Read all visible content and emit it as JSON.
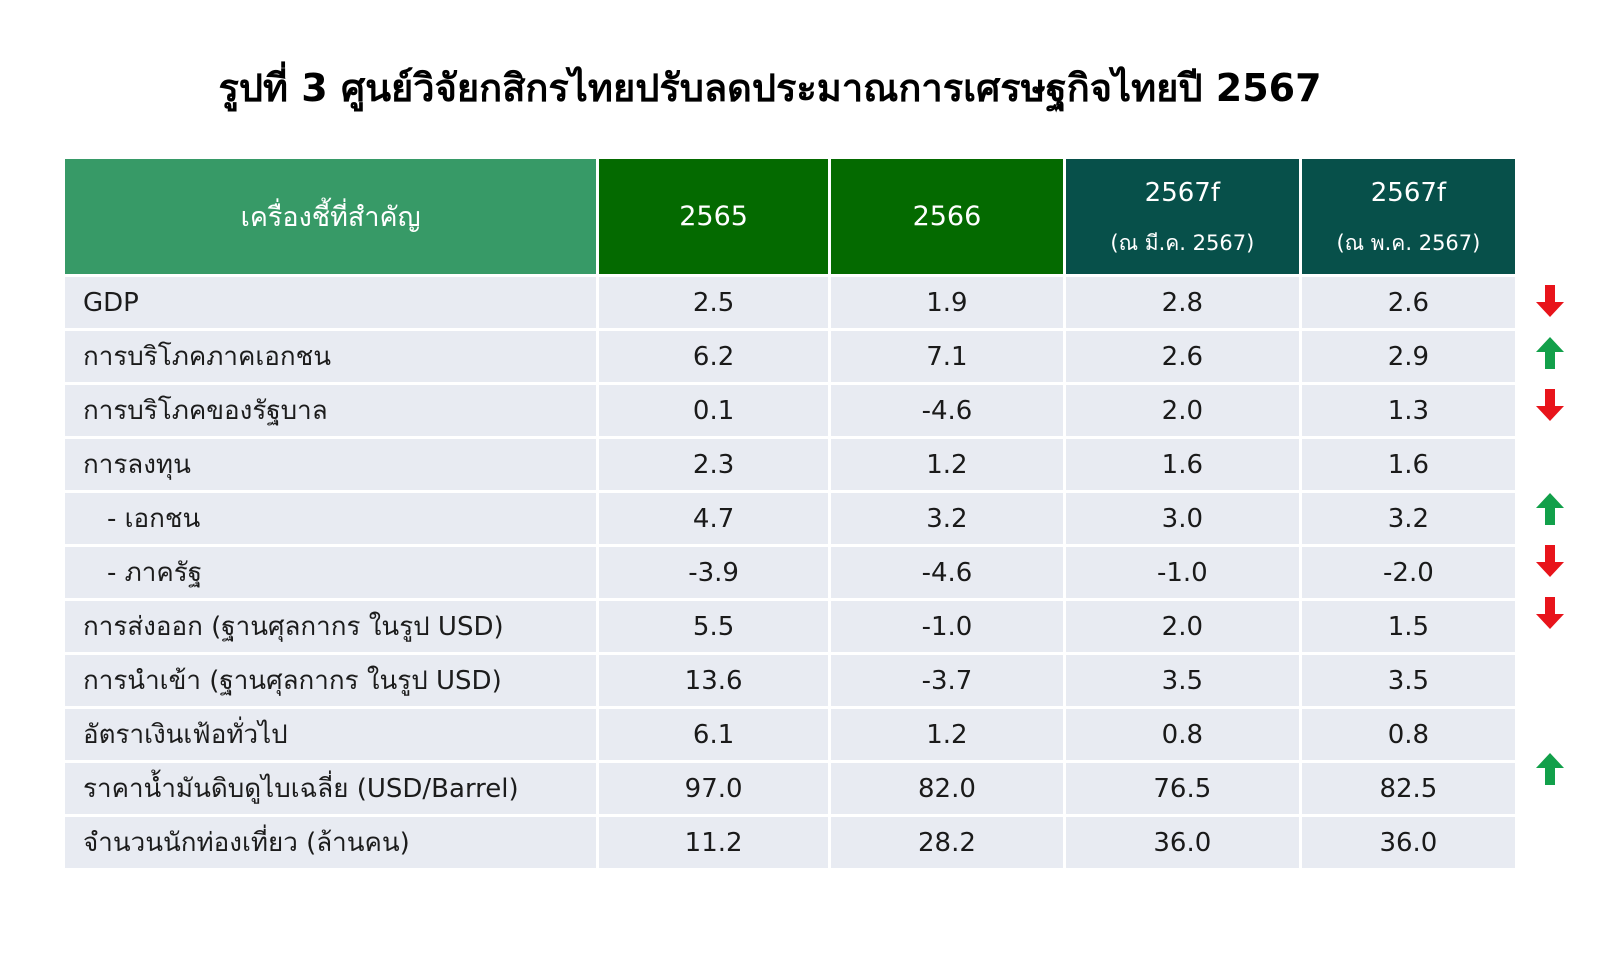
{
  "title": "รูปที่ 3 ศูนย์วิจัยกสิกรไทยปรับลดประมาณการเศรษฐกิจไทยปี 2567",
  "header": {
    "indicator": "เครื่องชี้ที่สำคัญ",
    "col_2565": "2565",
    "col_2566": "2566",
    "col_fc_mar": "2567f",
    "col_fc_mar_sub": "(ณ มี.ค. 2567)",
    "col_fc_may": "2567f",
    "col_fc_may_sub": "(ณ พ.ค. 2567)"
  },
  "rows": [
    {
      "label": "GDP",
      "indent": false,
      "v2565": "2.5",
      "v2566": "1.9",
      "fc_mar": "2.8",
      "fc_may": "2.6",
      "trend": "down"
    },
    {
      "label": "การบริโภคภาคเอกชน",
      "indent": false,
      "v2565": "6.2",
      "v2566": "7.1",
      "fc_mar": "2.6",
      "fc_may": "2.9",
      "trend": "up"
    },
    {
      "label": "การบริโภคของรัฐบาล",
      "indent": false,
      "v2565": "0.1",
      "v2566": "-4.6",
      "fc_mar": "2.0",
      "fc_may": "1.3",
      "trend": "down"
    },
    {
      "label": "การลงทุน",
      "indent": false,
      "v2565": "2.3",
      "v2566": "1.2",
      "fc_mar": "1.6",
      "fc_may": "1.6",
      "trend": "none"
    },
    {
      "label": "- เอกชน",
      "indent": true,
      "v2565": "4.7",
      "v2566": "3.2",
      "fc_mar": "3.0",
      "fc_may": "3.2",
      "trend": "up"
    },
    {
      "label": "- ภาครัฐ",
      "indent": true,
      "v2565": "-3.9",
      "v2566": "-4.6",
      "fc_mar": "-1.0",
      "fc_may": "-2.0",
      "trend": "down"
    },
    {
      "label": "การส่งออก (ฐานศุลกากร ในรูป USD)",
      "indent": false,
      "v2565": "5.5",
      "v2566": "-1.0",
      "fc_mar": "2.0",
      "fc_may": "1.5",
      "trend": "down"
    },
    {
      "label": "การนำเข้า (ฐานศุลกากร ในรูป USD)",
      "indent": false,
      "v2565": "13.6",
      "v2566": "-3.7",
      "fc_mar": "3.5",
      "fc_may": "3.5",
      "trend": "none"
    },
    {
      "label": "อัตราเงินเฟ้อทั่วไป",
      "indent": false,
      "v2565": "6.1",
      "v2566": "1.2",
      "fc_mar": "0.8",
      "fc_may": "0.8",
      "trend": "none"
    },
    {
      "label": "ราคาน้ำมันดิบดูไบเฉลี่ย (USD/Barrel)",
      "indent": false,
      "v2565": "97.0",
      "v2566": "82.0",
      "fc_mar": "76.5",
      "fc_may": "82.5",
      "trend": "up"
    },
    {
      "label": "จำนวนนักท่องเที่ยว (ล้านคน)",
      "indent": false,
      "v2565": "11.2",
      "v2566": "28.2",
      "fc_mar": "36.0",
      "fc_may": "36.0",
      "trend": "none"
    }
  ],
  "colors": {
    "header_indicator": "#379a67",
    "header_year": "#046a00",
    "header_forecast": "#07504a",
    "row_bg": "#e8ebf2",
    "arrow_up": "#12a04a",
    "arrow_down": "#e8141b"
  },
  "icons": {
    "up": "arrow-up-icon",
    "down": "arrow-down-icon"
  }
}
